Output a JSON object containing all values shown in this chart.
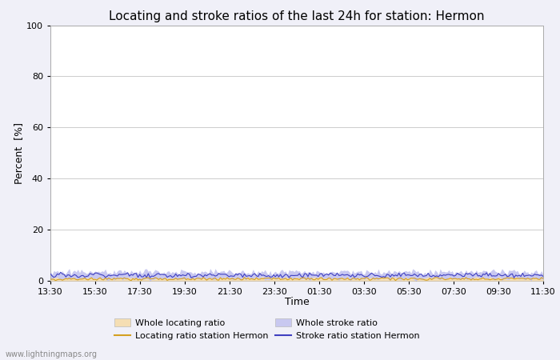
{
  "title": "Locating and stroke ratios of the last 24h for station: Hermon",
  "xlabel": "Time",
  "ylabel": "Percent  [%]",
  "ylim": [
    0,
    100
  ],
  "yticks": [
    0,
    20,
    40,
    60,
    80,
    100
  ],
  "x_labels": [
    "13:30",
    "15:30",
    "17:30",
    "19:30",
    "21:30",
    "23:30",
    "01:30",
    "03:30",
    "05:30",
    "07:30",
    "09:30",
    "11:30"
  ],
  "n_points": 288,
  "whole_locating_color": "#f5deb3",
  "whole_stroke_color": "#c8c8f0",
  "locating_line_color": "#d4a020",
  "stroke_line_color": "#4040c0",
  "bg_color": "#f0f0f8",
  "plot_bg_color": "#ffffff",
  "grid_color": "#cccccc",
  "watermark": "www.lightningmaps.org",
  "title_fontsize": 11,
  "axis_fontsize": 9,
  "tick_fontsize": 8,
  "watermark_fontsize": 7
}
